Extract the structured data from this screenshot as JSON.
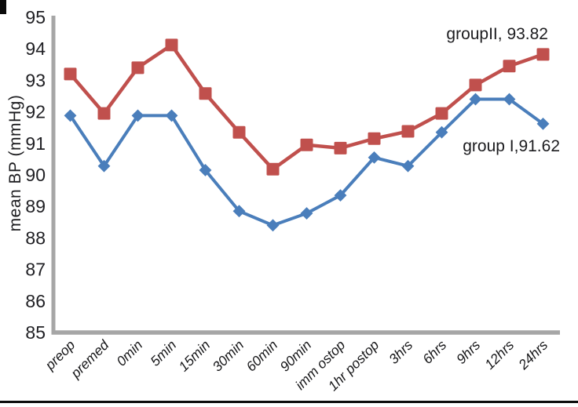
{
  "figure": {
    "background": "#ffffff",
    "rule_color": "#0b0b0b"
  },
  "chart_data": {
    "type": "line",
    "title": "",
    "xlabel": "",
    "ylabel": "mean BP (mmHg)",
    "ylim": [
      85,
      95
    ],
    "yticks": [
      85,
      86,
      87,
      88,
      89,
      90,
      91,
      92,
      93,
      94,
      95
    ],
    "grid": false,
    "legend_position": "none",
    "axis_color": "#a6a6a6",
    "text_color": "#1f1f23",
    "categories": [
      "preop",
      "premed",
      "0min",
      "5min",
      "15min",
      "30min",
      "60min",
      "90min",
      "imm ostop",
      "1hr postop",
      "3hrs",
      "6hrs",
      "9hrs",
      "12hrs",
      "24hrs"
    ],
    "series": [
      {
        "name": "groupII",
        "marker": "square",
        "color": "#c0504d",
        "values": [
          93.2,
          91.95,
          93.4,
          94.12,
          92.58,
          91.35,
          90.18,
          90.95,
          90.85,
          91.15,
          91.38,
          91.95,
          92.85,
          93.45,
          93.82
        ]
      },
      {
        "name": "group I",
        "marker": "diamond",
        "color": "#4a7ebb",
        "values": [
          91.88,
          90.28,
          91.88,
          91.88,
          90.15,
          88.85,
          88.4,
          88.78,
          89.35,
          90.55,
          90.28,
          91.35,
          92.4,
          92.4,
          91.62
        ]
      }
    ],
    "annotations": [
      {
        "text": "groupII, 93.82",
        "series": "groupII",
        "value": 93.82
      },
      {
        "text": "group I,91.62",
        "series": "group I",
        "value": 91.62
      }
    ]
  }
}
